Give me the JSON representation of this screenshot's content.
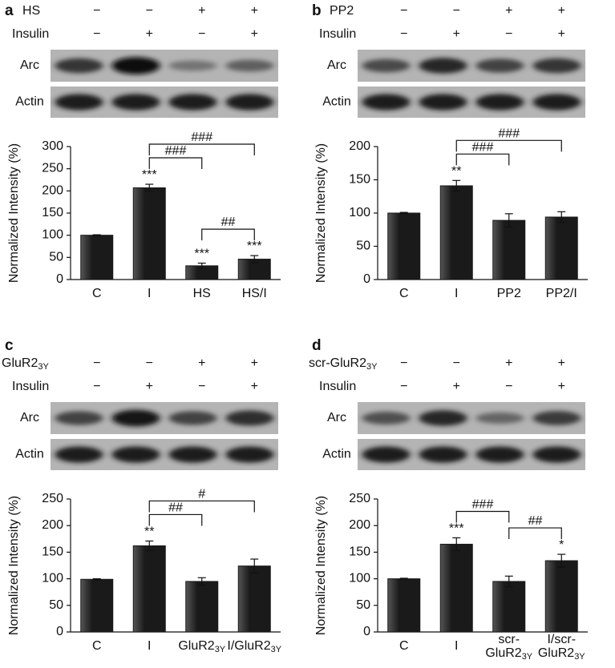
{
  "chart_data": [
    {
      "type": "bar",
      "panel": "a",
      "treatments": [
        {
          "label": "HS",
          "signs": [
            "−",
            "−",
            "+",
            "+"
          ]
        },
        {
          "label": "Insulin",
          "signs": [
            "−",
            "+",
            "−",
            "+"
          ]
        }
      ],
      "blot_labels": [
        "Arc",
        "Actin"
      ],
      "ylabel": "Normalized Intensity (%)",
      "categories": [
        "C",
        "I",
        "HS",
        "HS/I"
      ],
      "values": [
        100,
        207,
        31,
        46
      ],
      "errors": [
        1,
        8,
        6,
        8
      ],
      "annotations": [
        null,
        "***",
        "***",
        "***"
      ],
      "comparisons": [
        {
          "between": [
            "I",
            "HS"
          ],
          "label": "###"
        },
        {
          "between": [
            "I",
            "HS/I"
          ],
          "label": "###"
        },
        {
          "between": [
            "HS",
            "HS/I"
          ],
          "label": "##"
        }
      ],
      "ylim": [
        0,
        300
      ],
      "yticks": [
        0,
        50,
        100,
        150,
        200,
        250,
        300
      ],
      "color": "#1a1a1a",
      "arc_intensity": [
        0.7,
        0.95,
        0.25,
        0.4
      ]
    },
    {
      "type": "bar",
      "panel": "b",
      "treatments": [
        {
          "label": "PP2",
          "signs": [
            "−",
            "−",
            "+",
            "+"
          ]
        },
        {
          "label": "Insulin",
          "signs": [
            "−",
            "+",
            "−",
            "+"
          ]
        }
      ],
      "blot_labels": [
        "Arc",
        "Actin"
      ],
      "ylabel": "Normalized Intensity (%)",
      "categories": [
        "C",
        "I",
        "PP2",
        "PP2/I"
      ],
      "values": [
        100,
        141,
        89,
        94
      ],
      "errors": [
        1,
        8,
        10,
        8
      ],
      "annotations": [
        null,
        "**",
        null,
        null
      ],
      "comparisons": [
        {
          "between": [
            "I",
            "PP2"
          ],
          "label": "###"
        },
        {
          "between": [
            "I",
            "PP2/I"
          ],
          "label": "###"
        }
      ],
      "ylim": [
        0,
        200
      ],
      "yticks": [
        0,
        50,
        100,
        150,
        200
      ],
      "color": "#1a1a1a",
      "arc_intensity": [
        0.55,
        0.8,
        0.6,
        0.7
      ]
    },
    {
      "type": "bar",
      "panel": "c",
      "treatments": [
        {
          "label": "GluR23Y",
          "signs": [
            "−",
            "−",
            "+",
            "+"
          ]
        },
        {
          "label": "Insulin",
          "signs": [
            "−",
            "+",
            "−",
            "+"
          ]
        }
      ],
      "blot_labels": [
        "Arc",
        "Actin"
      ],
      "ylabel": "Normalized Intensity (%)",
      "categories": [
        "C",
        "I",
        "GluR23Y",
        "I/GluR23Y"
      ],
      "values": [
        99,
        162,
        95,
        124
      ],
      "errors": [
        1,
        9,
        7,
        13
      ],
      "annotations": [
        null,
        "**",
        null,
        null
      ],
      "comparisons": [
        {
          "between": [
            "I",
            "GluR23Y"
          ],
          "label": "##"
        },
        {
          "between": [
            "I",
            "I/GluR23Y"
          ],
          "label": "#"
        }
      ],
      "ylim": [
        0,
        250
      ],
      "yticks": [
        0,
        50,
        100,
        150,
        200,
        250
      ],
      "color": "#1a1a1a",
      "arc_intensity": [
        0.6,
        0.9,
        0.6,
        0.75
      ]
    },
    {
      "type": "bar",
      "panel": "d",
      "wrap_labels": true,
      "treatments": [
        {
          "label": "scr-GluR23Y",
          "signs": [
            "−",
            "−",
            "+",
            "+"
          ]
        },
        {
          "label": "Insulin",
          "signs": [
            "−",
            "+",
            "−",
            "+"
          ]
        }
      ],
      "blot_labels": [
        "Arc",
        "Actin"
      ],
      "ylabel": "Normalized Intensity (%)",
      "categories": [
        "C",
        "I",
        "scr-GluR23Y",
        "I/scr-GluR23Y"
      ],
      "values": [
        100,
        165,
        95,
        134
      ],
      "errors": [
        1,
        12,
        10,
        12
      ],
      "annotations": [
        null,
        "***",
        null,
        "*"
      ],
      "comparisons": [
        {
          "between": [
            "I",
            "scr-GluR23Y"
          ],
          "label": "###"
        },
        {
          "between": [
            "scr-GluR23Y",
            "I/scr-GluR23Y"
          ],
          "label": "##"
        }
      ],
      "ylim": [
        0,
        250
      ],
      "yticks": [
        0,
        50,
        100,
        150,
        200,
        250
      ],
      "color": "#1a1a1a",
      "arc_intensity": [
        0.5,
        0.8,
        0.35,
        0.65
      ]
    }
  ]
}
